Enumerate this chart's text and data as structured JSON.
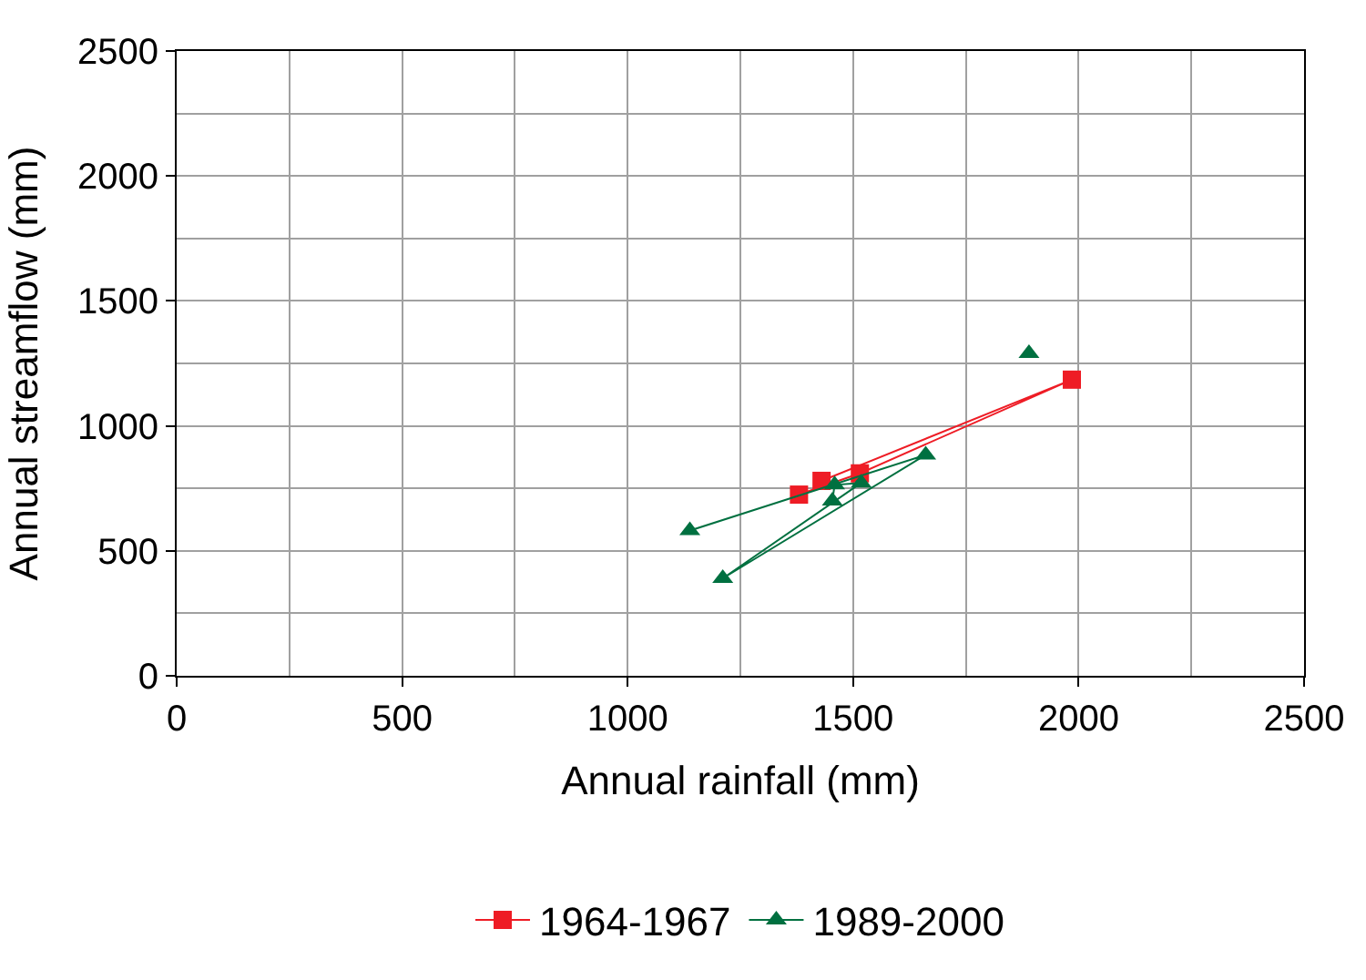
{
  "chart_data": {
    "type": "line",
    "xlabel": "Annual rainfall (mm)",
    "ylabel": "Annual streamflow (mm)",
    "xlim": [
      0,
      2500
    ],
    "xticks": [
      0,
      500,
      1000,
      1500,
      2000,
      2500
    ],
    "ylim": [
      0,
      2500
    ],
    "yticks": [
      0,
      500,
      1000,
      1500,
      2000,
      2500
    ],
    "grid": true,
    "legend": "bottom",
    "series": [
      {
        "name": "1964-1967",
        "color": "#ee1c25",
        "marker": "square",
        "x": [
          1430,
          1985,
          1515,
          1380
        ],
        "values": [
          780,
          1185,
          810,
          725
        ]
      },
      {
        "name": "1989-2000",
        "color": "#007040",
        "marker": "triangle",
        "x": [
          1138,
          1661,
          1211,
          1518,
          1459,
          1454
        ],
        "values": [
          581,
          884,
          390,
          772,
          764,
          700
        ]
      },
      {
        "type": "scatter",
        "color": "#007040",
        "marker": "triangle",
        "x": [
          1890
        ],
        "values": [
          1290
        ]
      }
    ]
  }
}
